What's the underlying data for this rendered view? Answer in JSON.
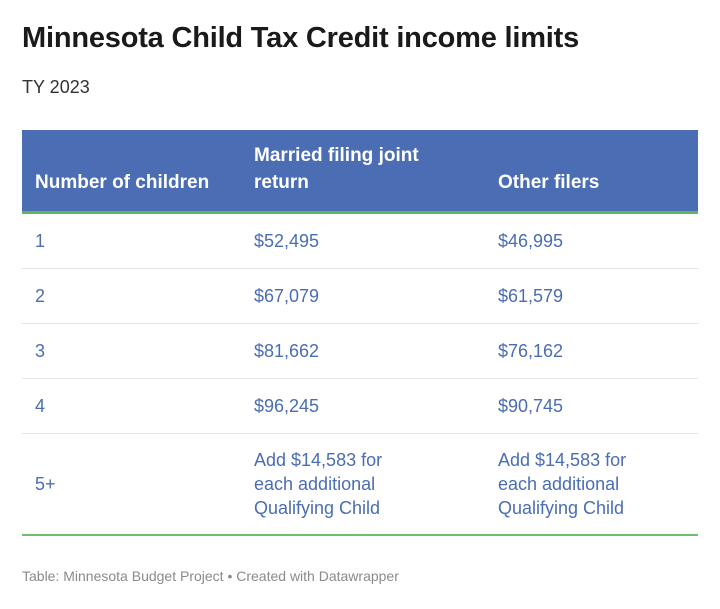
{
  "header": {
    "title": "Minnesota Child Tax Credit income limits",
    "subtitle": "TY 2023"
  },
  "table": {
    "columns": [
      "Number of children",
      "Married filing joint return",
      "Other filers"
    ],
    "rows": [
      [
        "1",
        "$52,495",
        "$46,995"
      ],
      [
        "2",
        "$67,079",
        "$61,579"
      ],
      [
        "3",
        "$81,662",
        "$76,162"
      ],
      [
        "4",
        "$96,245",
        "$90,745"
      ],
      [
        "5+",
        "Add $14,583 for each additional Qualifying Child",
        "Add $14,583 for each additional Qualifying Child"
      ]
    ]
  },
  "footer": "Table: Minnesota Budget Project • Created with Datawrapper"
}
